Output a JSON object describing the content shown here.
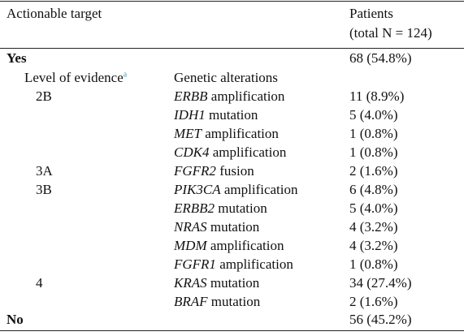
{
  "header": {
    "col_target": "Actionable target",
    "col_patients_line1": "Patients",
    "col_patients_line2": "(total N = 124)"
  },
  "yes_row": {
    "label": "Yes",
    "patients": "68 (54.8%)"
  },
  "subheader": {
    "level_label": "Level of evidence",
    "level_sup": "a",
    "alterations_label": "Genetic alterations"
  },
  "rows": [
    {
      "level": "2B",
      "gene": "ERBB",
      "type": "amplification",
      "patients": "11 (8.9%)"
    },
    {
      "level": "",
      "gene": "IDH1",
      "type": "mutation",
      "patients": "5 (4.0%)"
    },
    {
      "level": "",
      "gene": "MET",
      "type": "amplification",
      "patients": "1 (0.8%)"
    },
    {
      "level": "",
      "gene": "CDK4",
      "type": "amplification",
      "patients": "1 (0.8%)"
    },
    {
      "level": "3A",
      "gene": "FGFR2",
      "type": "fusion",
      "patients": "2 (1.6%)"
    },
    {
      "level": "3B",
      "gene": "PIK3CA",
      "type": "amplification",
      "patients": "6 (4.8%)"
    },
    {
      "level": "",
      "gene": "ERBB2",
      "type": "mutation",
      "patients": "5 (4.0%)"
    },
    {
      "level": "",
      "gene": "NRAS",
      "type": "mutation",
      "patients": "4 (3.2%)"
    },
    {
      "level": "",
      "gene": "MDM",
      "type": "amplification",
      "patients": "4 (3.2%)"
    },
    {
      "level": "",
      "gene": "FGFR1",
      "type": "amplification",
      "patients": "1 (0.8%)"
    },
    {
      "level": "4",
      "gene": "KRAS",
      "type": "mutation",
      "patients": "34 (27.4%)"
    },
    {
      "level": "",
      "gene": "BRAF",
      "type": "mutation",
      "patients": "2 (1.6%)"
    }
  ],
  "no_row": {
    "label": "No",
    "patients": "56 (45.2%)"
  }
}
